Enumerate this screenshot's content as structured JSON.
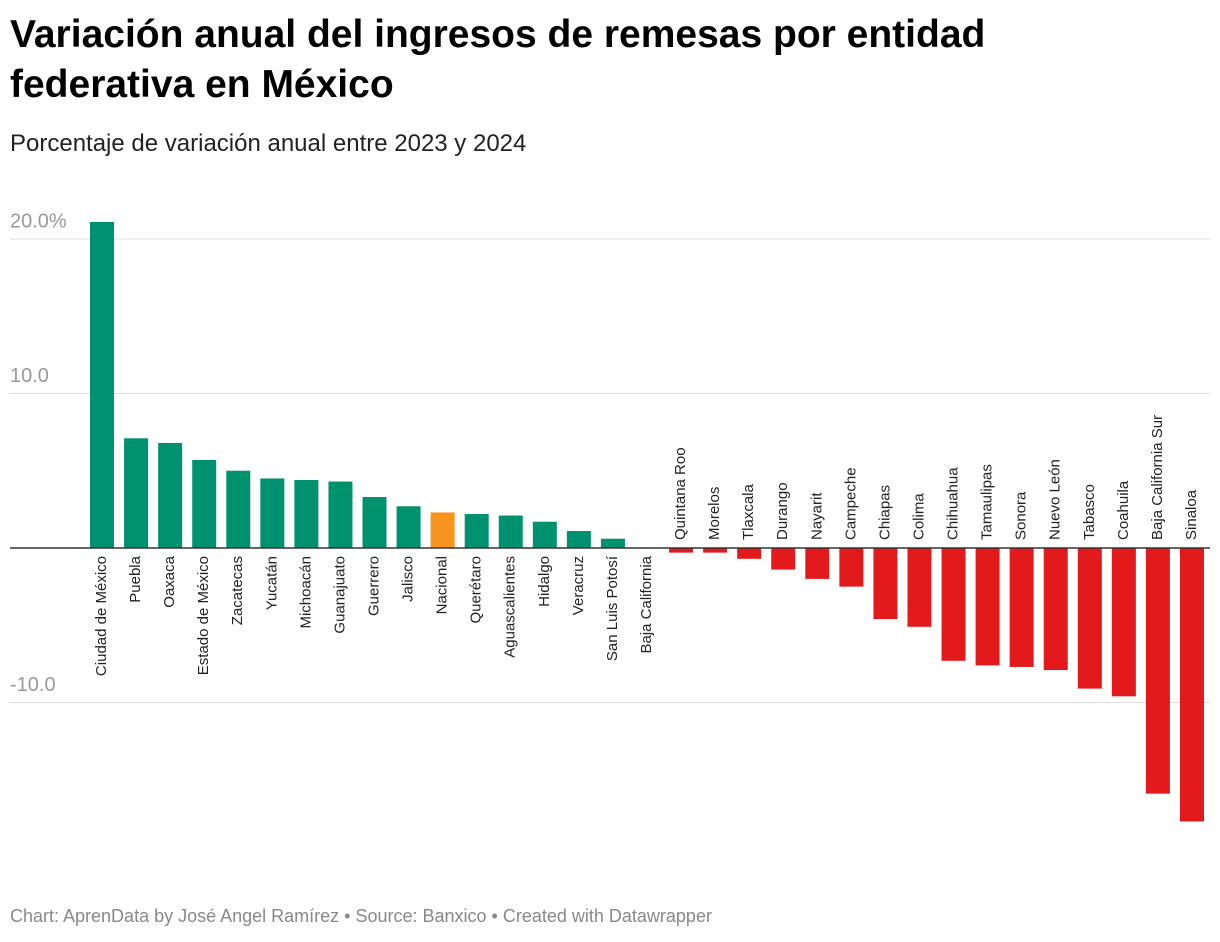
{
  "chart_data": {
    "type": "bar",
    "title": "Variación anual del ingresos de remesas por entidad federativa en México",
    "subtitle": "Porcentaje de variación anual entre 2023 y 2024",
    "footer": "Chart: AprenData by José Angel Ramírez • Source: Banxico • Created with Datawrapper",
    "categories": [
      "Ciudad de México",
      "Puebla",
      "Oaxaca",
      "Estado de México",
      "Zacatecas",
      "Yucatán",
      "Michoacán",
      "Guanajuato",
      "Guerrero",
      "Jalisco",
      "Nacional",
      "Querétaro",
      "Aguascalientes",
      "Hidalgo",
      "Veracruz",
      "San Luis Potosí",
      "Baja California",
      "Quintana Roo",
      "Morelos",
      "Tlaxcala",
      "Durango",
      "Nayarit",
      "Campeche",
      "Chiapas",
      "Colima",
      "Chihuahua",
      "Tamaulipas",
      "Sonora",
      "Nuevo León",
      "Tabasco",
      "Coahuila",
      "Baja California Sur",
      "Sinaloa"
    ],
    "values": [
      21.1,
      7.1,
      6.8,
      5.7,
      5.0,
      4.5,
      4.4,
      4.3,
      3.3,
      2.7,
      2.3,
      2.2,
      2.1,
      1.7,
      1.1,
      0.6,
      0,
      -0.3,
      -0.3,
      -0.7,
      -1.4,
      -2.0,
      -2.5,
      -4.6,
      -5.1,
      -7.3,
      -7.6,
      -7.7,
      -7.9,
      -9.1,
      -9.6,
      -15.9,
      -17.7
    ],
    "colors": [
      "#00916e",
      "#00916e",
      "#00916e",
      "#00916e",
      "#00916e",
      "#00916e",
      "#00916e",
      "#00916e",
      "#00916e",
      "#00916e",
      "#f7941d",
      "#00916e",
      "#00916e",
      "#00916e",
      "#00916e",
      "#00916e",
      "#00916e",
      "#e31a1c",
      "#e31a1c",
      "#e31a1c",
      "#e31a1c",
      "#e31a1c",
      "#e31a1c",
      "#e31a1c",
      "#e31a1c",
      "#e31a1c",
      "#e31a1c",
      "#e31a1c",
      "#e31a1c",
      "#e31a1c",
      "#e31a1c",
      "#e31a1c",
      "#e31a1c"
    ],
    "ylim": [
      -18,
      21.5
    ],
    "yticks": [
      {
        "value": 20,
        "label": "20.0%"
      },
      {
        "value": 10,
        "label": "10.0"
      },
      {
        "value": -10,
        "label": "-10.0"
      }
    ],
    "grid": true
  }
}
